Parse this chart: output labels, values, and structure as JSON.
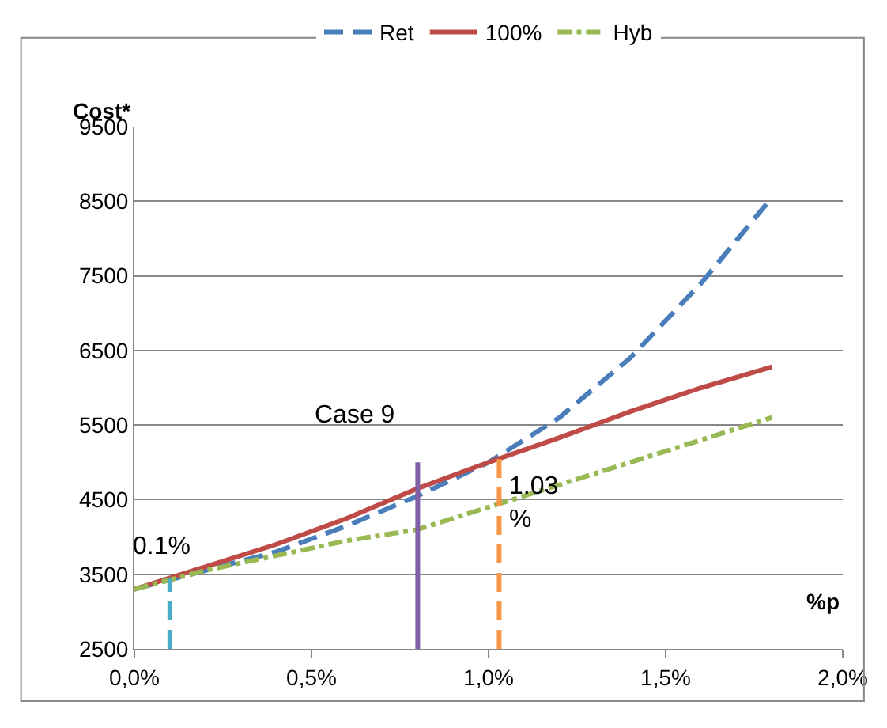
{
  "chart_data": {
    "type": "line",
    "xlabel": "%p",
    "ylabel": "Cost*",
    "x": [
      0,
      0.2,
      0.4,
      0.6,
      0.8,
      1.0,
      1.2,
      1.4,
      1.6,
      1.8
    ],
    "series": [
      {
        "name": "Ret",
        "color": "#4a7ebb",
        "line_style": "dashed",
        "values": [
          3300,
          3550,
          3800,
          4150,
          4550,
          5000,
          5600,
          6400,
          7400,
          8550
        ]
      },
      {
        "name": "100%",
        "color": "#be4b48",
        "line_style": "solid",
        "values": [
          3300,
          3600,
          3900,
          4250,
          4650,
          5000,
          5330,
          5680,
          6000,
          6280
        ]
      },
      {
        "name": "Hyb",
        "color": "#98b954",
        "line_style": "dashdot",
        "values": [
          3300,
          3550,
          3750,
          3950,
          4100,
          4400,
          4700,
          5000,
          5300,
          5600
        ]
      },
      {
        "color": "#4bacc6",
        "line_style": "dashed",
        "x": [
          0.1,
          0.1
        ],
        "values": [
          2500,
          3450
        ]
      },
      {
        "color": "#7f5fa5",
        "line_style": "solid",
        "x": [
          0.8,
          0.8
        ],
        "values": [
          2500,
          5000
        ]
      },
      {
        "color": "#f79646",
        "line_style": "dashed",
        "x": [
          1.03,
          1.03
        ],
        "values": [
          2500,
          5050
        ]
      }
    ],
    "annotations": [
      {
        "text": "0.1%",
        "x": 0.1,
        "y": 3450
      },
      {
        "text": "Case 9",
        "x": 0.8,
        "y": 5000
      },
      {
        "text": "1.03\n%",
        "x": 1.03,
        "y": 5050
      }
    ],
    "xlim": [
      0,
      2.0
    ],
    "xticks": [
      {
        "value": 0,
        "label": "0,0%"
      },
      {
        "value": 0.5,
        "label": "0,5%"
      },
      {
        "value": 1.0,
        "label": "1,0%"
      },
      {
        "value": 1.5,
        "label": "1,5%"
      },
      {
        "value": 2.0,
        "label": "2,0%"
      }
    ],
    "ylim": [
      2500,
      9500
    ],
    "yticks": [
      2500,
      3500,
      4500,
      5500,
      6500,
      7500,
      8500,
      9500
    ],
    "grid": "y",
    "legend": "top"
  }
}
